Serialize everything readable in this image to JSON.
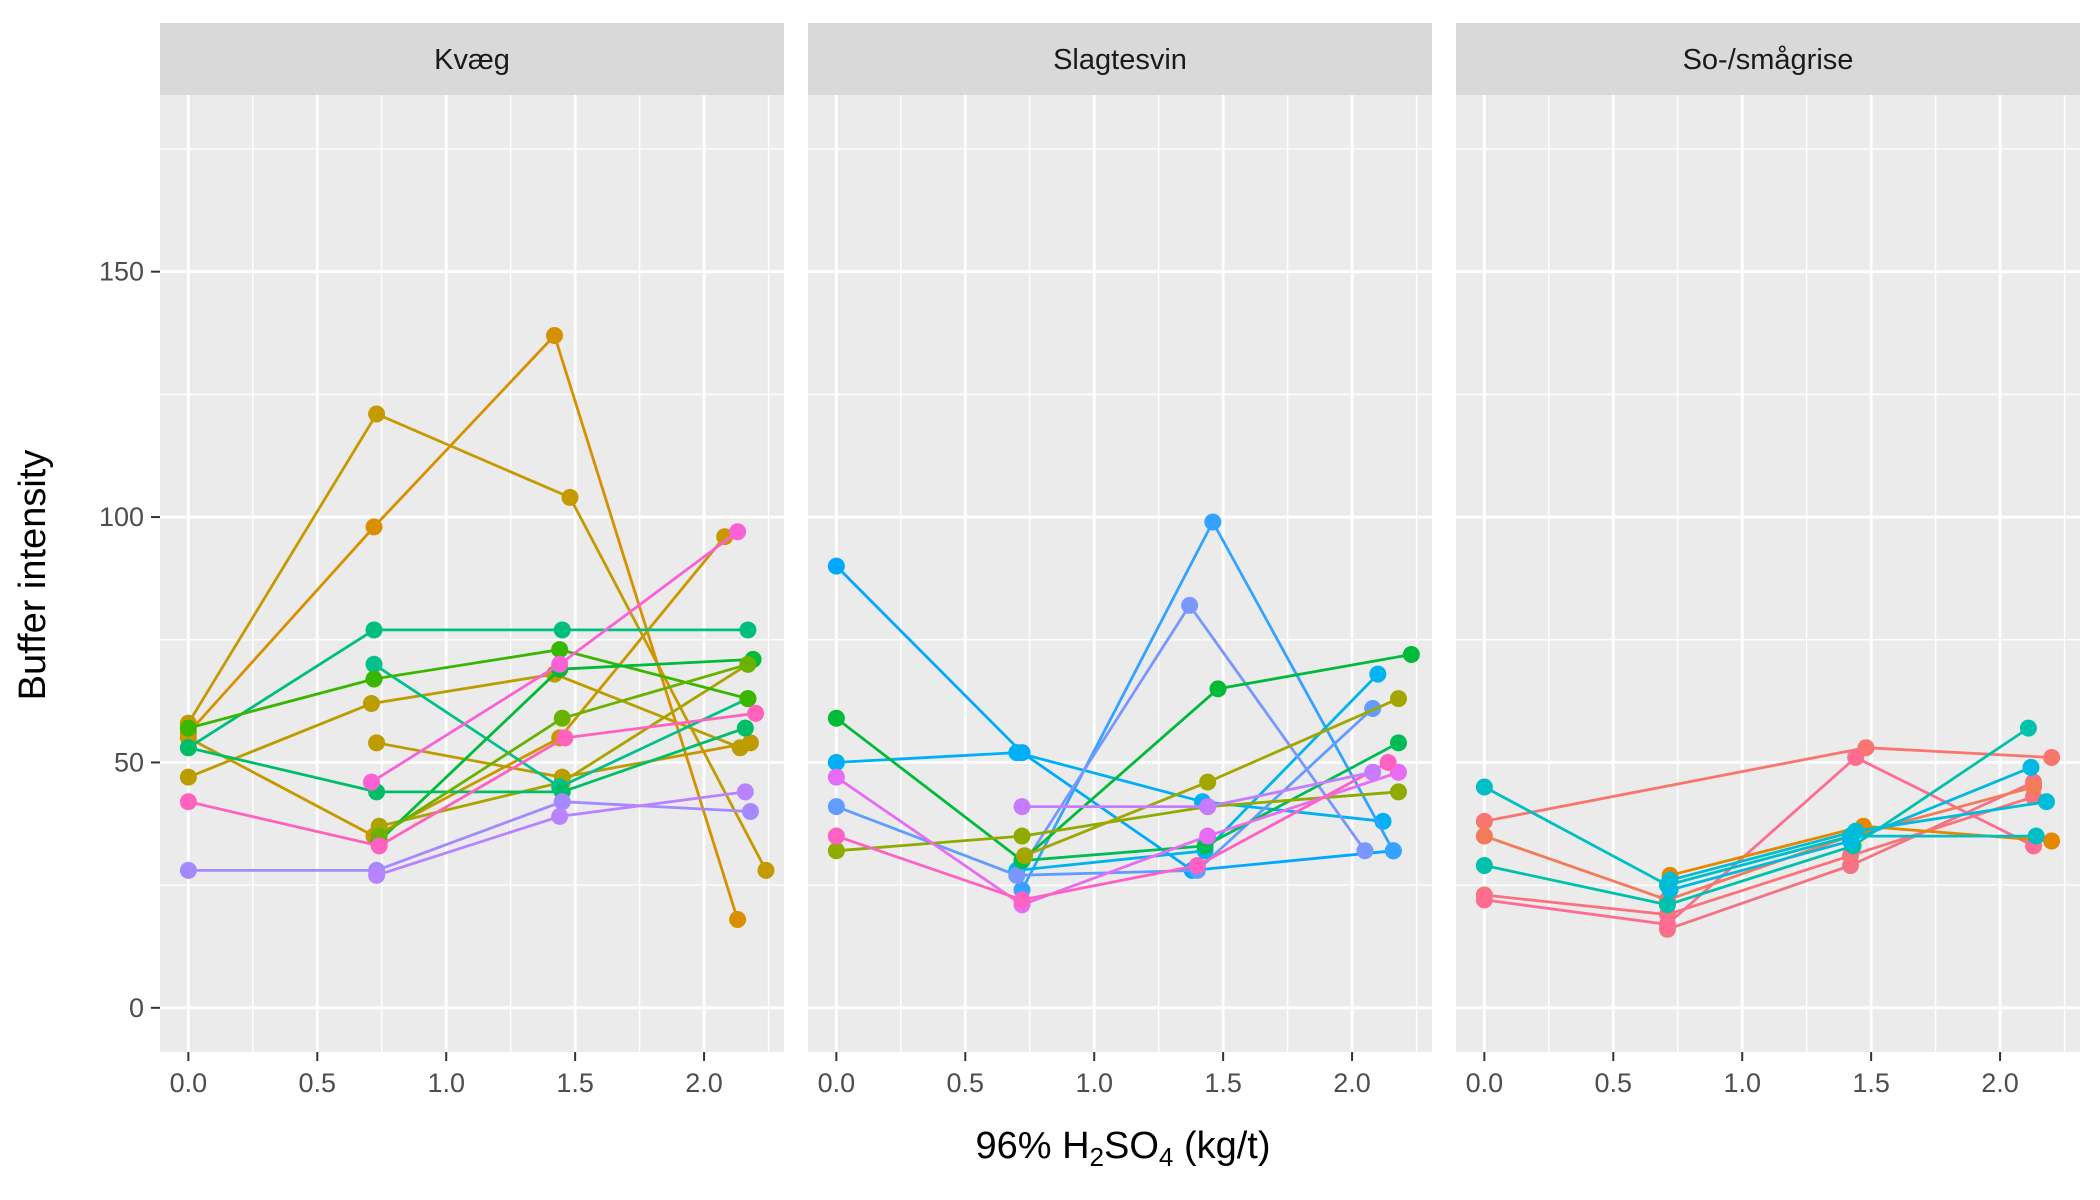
{
  "chart_data": {
    "type": "line",
    "xlabel": {
      "prefix": "96% H",
      "sub1": "2",
      "mid": "SO",
      "sub2": "4",
      "suffix": " (kg/t)"
    },
    "ylabel": "Buffer intensity",
    "xlim": [
      -0.11,
      2.31
    ],
    "ylim": [
      -9,
      186
    ],
    "x_ticks": [
      0.0,
      0.5,
      1.0,
      1.5,
      2.0
    ],
    "x_tick_labels": [
      "0.0",
      "0.5",
      "1.0",
      "1.5",
      "2.0"
    ],
    "y_ticks": [
      0,
      50,
      100,
      150
    ],
    "y_tick_labels": [
      "0",
      "50",
      "100",
      "150"
    ],
    "grid": true,
    "legend": "none",
    "panels": [
      {
        "title": "Kvæg",
        "series": [
          {
            "color": "#C49A00",
            "points": [
              [
                0.0,
                58
              ],
              [
                0.73,
                121
              ],
              [
                1.48,
                104
              ],
              [
                2.24,
                28
              ]
            ]
          },
          {
            "color": "#D89000",
            "points": [
              [
                0.0,
                56
              ],
              [
                0.72,
                98
              ],
              [
                1.42,
                137
              ],
              [
                2.13,
                18
              ]
            ]
          },
          {
            "color": "#C99800",
            "points": [
              [
                0.0,
                55
              ],
              [
                0.72,
                35
              ],
              [
                1.44,
                55
              ],
              [
                2.08,
                96
              ]
            ]
          },
          {
            "color": "#BB9D00",
            "points": [
              [
                0.0,
                47
              ],
              [
                0.71,
                62
              ],
              [
                1.42,
                68
              ],
              [
                2.14,
                53
              ]
            ]
          },
          {
            "color": "#C09B00",
            "points": [
              [
                0.73,
                54
              ],
              [
                1.45,
                47
              ],
              [
                2.18,
                54
              ]
            ]
          },
          {
            "color": "#ABA300",
            "points": [
              [
                0.74,
                37
              ],
              [
                1.45,
                46
              ],
              [
                2.17,
                70
              ]
            ]
          },
          {
            "color": "#00BF7D",
            "points": [
              [
                0.0,
                53
              ],
              [
                0.72,
                77
              ],
              [
                1.45,
                77
              ],
              [
                2.17,
                77
              ]
            ]
          },
          {
            "color": "#00C08B",
            "points": [
              [
                0.72,
                70
              ],
              [
                1.44,
                45
              ],
              [
                2.17,
                63
              ]
            ]
          },
          {
            "color": "#00BE67",
            "points": [
              [
                0.0,
                53
              ],
              [
                0.73,
                44
              ],
              [
                1.45,
                44
              ],
              [
                2.16,
                57
              ]
            ]
          },
          {
            "color": "#39B600",
            "points": [
              [
                0.0,
                57
              ],
              [
                0.72,
                67
              ],
              [
                1.44,
                73
              ],
              [
                2.17,
                63
              ]
            ]
          },
          {
            "color": "#00BA38",
            "points": [
              [
                0.74,
                34
              ],
              [
                1.44,
                69
              ],
              [
                2.19,
                71
              ]
            ]
          },
          {
            "color": "#6BB100",
            "points": [
              [
                0.74,
                35
              ],
              [
                1.45,
                59
              ],
              [
                2.17,
                70
              ]
            ]
          },
          {
            "color": "#FF62BC",
            "points": [
              [
                0.0,
                42
              ],
              [
                0.74,
                33
              ],
              [
                1.46,
                55
              ],
              [
                2.2,
                60
              ]
            ]
          },
          {
            "color": "#FB61D7",
            "points": [
              [
                0.71,
                46
              ],
              [
                1.44,
                70
              ],
              [
                2.13,
                97
              ]
            ]
          },
          {
            "color": "#A58AFF",
            "points": [
              [
                0.0,
                28
              ],
              [
                0.73,
                28
              ],
              [
                1.45,
                42
              ],
              [
                2.18,
                40
              ]
            ]
          },
          {
            "color": "#B983FF",
            "points": [
              [
                0.73,
                27
              ],
              [
                1.44,
                39
              ],
              [
                2.16,
                44
              ]
            ]
          }
        ]
      },
      {
        "title": "Slagtesvin",
        "series": [
          {
            "color": "#00A9FF",
            "points": [
              [
                0.0,
                90
              ],
              [
                0.72,
                52
              ],
              [
                1.38,
                28
              ],
              [
                2.16,
                32
              ]
            ]
          },
          {
            "color": "#00B0F6",
            "points": [
              [
                0.0,
                50
              ],
              [
                0.7,
                52
              ],
              [
                1.42,
                42
              ],
              [
                2.12,
                38
              ]
            ]
          },
          {
            "color": "#35A2FF",
            "points": [
              [
                0.72,
                24
              ],
              [
                1.46,
                99
              ],
              [
                2.16,
                32
              ]
            ]
          },
          {
            "color": "#619CFF",
            "points": [
              [
                0.0,
                41
              ],
              [
                0.7,
                27
              ],
              [
                1.4,
                28
              ],
              [
                2.08,
                61
              ]
            ]
          },
          {
            "color": "#00B4F0",
            "points": [
              [
                0.7,
                28
              ],
              [
                1.43,
                32
              ],
              [
                2.1,
                68
              ]
            ]
          },
          {
            "color": "#7997FF",
            "points": [
              [
                0.7,
                27
              ],
              [
                1.37,
                82
              ],
              [
                2.05,
                32
              ]
            ]
          },
          {
            "color": "#00BA38",
            "points": [
              [
                0.0,
                59
              ],
              [
                0.72,
                30
              ],
              [
                1.48,
                65
              ],
              [
                2.23,
                72
              ]
            ]
          },
          {
            "color": "#00BC55",
            "points": [
              [
                0.72,
                30
              ],
              [
                1.43,
                33
              ],
              [
                2.18,
                54
              ]
            ]
          },
          {
            "color": "#8EAB00",
            "points": [
              [
                0.0,
                32
              ],
              [
                0.72,
                35
              ],
              [
                1.44,
                41
              ],
              [
                2.18,
                44
              ]
            ]
          },
          {
            "color": "#A3A500",
            "points": [
              [
                0.73,
                31
              ],
              [
                1.44,
                46
              ],
              [
                2.18,
                63
              ]
            ]
          },
          {
            "color": "#E76BF3",
            "points": [
              [
                0.0,
                47
              ],
              [
                0.72,
                21
              ],
              [
                1.44,
                35
              ],
              [
                2.18,
                48
              ]
            ]
          },
          {
            "color": "#FF61C3",
            "points": [
              [
                0.0,
                35
              ],
              [
                0.72,
                22
              ],
              [
                1.4,
                29
              ],
              [
                2.14,
                50
              ]
            ]
          },
          {
            "color": "#C77CFF",
            "points": [
              [
                0.72,
                41
              ],
              [
                1.44,
                41
              ],
              [
                2.08,
                48
              ]
            ]
          }
        ]
      },
      {
        "title": "So-/smågrise",
        "series": [
          {
            "color": "#F8766D",
            "points": [
              [
                0.0,
                38
              ],
              [
                1.48,
                53
              ],
              [
                2.2,
                51
              ]
            ]
          },
          {
            "color": "#F27483",
            "points": [
              [
                0.71,
                16
              ],
              [
                1.42,
                29
              ],
              [
                2.13,
                46
              ]
            ]
          },
          {
            "color": "#FB727C",
            "points": [
              [
                0.0,
                23
              ],
              [
                0.71,
                19
              ],
              [
                1.42,
                31
              ],
              [
                2.13,
                43
              ]
            ]
          },
          {
            "color": "#FF6C91",
            "points": [
              [
                0.0,
                22
              ],
              [
                0.71,
                17
              ],
              [
                1.44,
                51
              ],
              [
                2.13,
                33
              ]
            ]
          },
          {
            "color": "#F37B59",
            "points": [
              [
                0.0,
                35
              ],
              [
                0.71,
                22
              ],
              [
                1.42,
                35
              ],
              [
                2.13,
                45
              ]
            ]
          },
          {
            "color": "#E58700",
            "points": [
              [
                0.72,
                27
              ],
              [
                1.47,
                37
              ],
              [
                2.2,
                34
              ]
            ]
          },
          {
            "color": "#00BFC4",
            "points": [
              [
                0.0,
                45
              ],
              [
                0.71,
                25
              ],
              [
                1.42,
                35
              ],
              [
                2.14,
                35
              ]
            ]
          },
          {
            "color": "#00C1AB",
            "points": [
              [
                0.0,
                29
              ],
              [
                0.71,
                21
              ],
              [
                1.43,
                33
              ],
              [
                2.11,
                57
              ]
            ]
          },
          {
            "color": "#00B9E3",
            "points": [
              [
                0.72,
                24
              ],
              [
                1.42,
                34
              ],
              [
                2.12,
                49
              ]
            ]
          },
          {
            "color": "#00BCD8",
            "points": [
              [
                0.72,
                26
              ],
              [
                1.44,
                36
              ],
              [
                2.18,
                42
              ]
            ]
          }
        ]
      }
    ]
  }
}
